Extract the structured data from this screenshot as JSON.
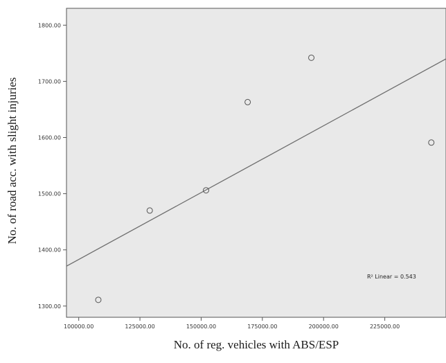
{
  "chart_data": {
    "type": "scatter",
    "title": "",
    "xlabel": "No. of reg. vehicles with ABS/ESP",
    "ylabel": "No. of road acc. with slight injuries",
    "xlim": [
      95000,
      250000
    ],
    "ylim": [
      1280,
      1830
    ],
    "x_ticks": [
      100000,
      125000,
      150000,
      175000,
      200000,
      225000
    ],
    "x_tick_labels": [
      "100000.00",
      "125000.00",
      "150000.00",
      "175000.00",
      "200000.00",
      "225000.00"
    ],
    "y_ticks": [
      1300,
      1400,
      1500,
      1600,
      1700,
      1800
    ],
    "y_tick_labels": [
      "1300.00",
      "1400.00",
      "1500.00",
      "1600.00",
      "1700.00",
      "1800.00"
    ],
    "points": [
      {
        "x": 108000,
        "y": 1311
      },
      {
        "x": 129000,
        "y": 1470
      },
      {
        "x": 152000,
        "y": 1506
      },
      {
        "x": 169000,
        "y": 1663
      },
      {
        "x": 195000,
        "y": 1742
      },
      {
        "x": 244000,
        "y": 1591
      }
    ],
    "fit_line": {
      "type": "linear",
      "start": {
        "x": 95000,
        "y": 1371
      },
      "end": {
        "x": 250000,
        "y": 1740
      }
    },
    "annotation": "R² Linear = 0.543",
    "grid": false,
    "colors": {
      "plot_background": "#e9e9e9",
      "marker_stroke": "#555555",
      "fit_line": "#6e6e6e",
      "axis": "#555555"
    }
  }
}
